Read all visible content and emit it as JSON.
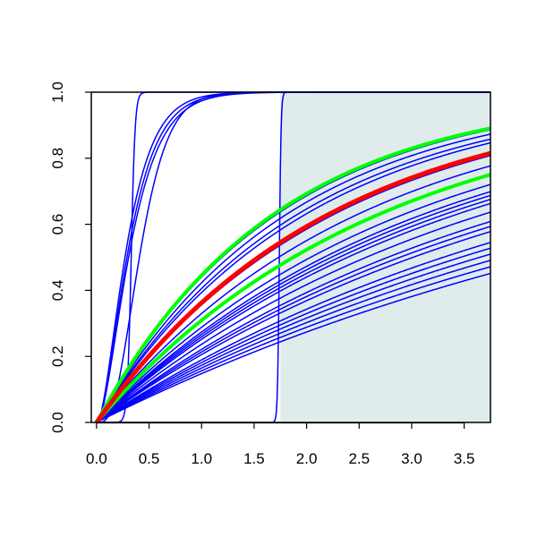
{
  "chart_data": {
    "type": "line",
    "title": "",
    "xlabel": "",
    "ylabel": "",
    "xlim": [
      -0.05,
      3.75
    ],
    "ylim": [
      0,
      1.0
    ],
    "x_ticks": [
      "0.0",
      "0.5",
      "1.0",
      "1.5",
      "2.0",
      "2.5",
      "3.0",
      "3.5"
    ],
    "y_ticks": [
      "0.0",
      "0.2",
      "0.4",
      "0.6",
      "0.8",
      "1.0"
    ],
    "shaded_region": {
      "x_from": 1.75,
      "x_to": 3.75,
      "color": "#e0ecec"
    },
    "colors": {
      "blue": "#0000ff",
      "red": "#ff0000",
      "green": "#00ff00",
      "frame": "#000000"
    },
    "grid": false,
    "legend": "none",
    "series": [
      {
        "color": "blue",
        "kind": "exp",
        "k": 0.58,
        "width": 1.5
      },
      {
        "color": "blue",
        "kind": "exp",
        "k": 0.55,
        "width": 1.5
      },
      {
        "color": "blue",
        "kind": "exp",
        "k": 0.52,
        "width": 1.5
      },
      {
        "color": "blue",
        "kind": "exp",
        "k": 0.5,
        "width": 1.5
      },
      {
        "color": "blue",
        "kind": "exp",
        "k": 0.44,
        "width": 1.5
      },
      {
        "color": "blue",
        "kind": "exp",
        "k": 0.4,
        "width": 1.5
      },
      {
        "color": "blue",
        "kind": "exp",
        "k": 0.37,
        "width": 1.5
      },
      {
        "color": "blue",
        "kind": "exp",
        "k": 0.34,
        "width": 1.5
      },
      {
        "color": "blue",
        "kind": "exp",
        "k": 0.32,
        "width": 1.5
      },
      {
        "color": "blue",
        "kind": "exp",
        "k": 0.31,
        "width": 1.5
      },
      {
        "color": "blue",
        "kind": "exp",
        "k": 0.3,
        "width": 1.5
      },
      {
        "color": "blue",
        "kind": "exp",
        "k": 0.29,
        "width": 1.5
      },
      {
        "color": "blue",
        "kind": "exp",
        "k": 0.27,
        "width": 1.5
      },
      {
        "color": "blue",
        "kind": "exp",
        "k": 0.25,
        "width": 1.5
      },
      {
        "color": "blue",
        "kind": "exp",
        "k": 0.24,
        "width": 1.5
      },
      {
        "color": "blue",
        "kind": "exp",
        "k": 0.23,
        "width": 1.5
      },
      {
        "color": "blue",
        "kind": "exp",
        "k": 0.21,
        "width": 1.5
      },
      {
        "color": "blue",
        "kind": "exp",
        "k": 0.2,
        "width": 1.5
      },
      {
        "color": "blue",
        "kind": "exp",
        "k": 0.19,
        "width": 1.5
      },
      {
        "color": "blue",
        "kind": "exp",
        "k": 0.18,
        "width": 1.5
      },
      {
        "color": "blue",
        "kind": "exp",
        "k": 0.17,
        "width": 1.5
      },
      {
        "color": "blue",
        "kind": "exp",
        "k": 0.16,
        "width": 1.5
      },
      {
        "color": "blue",
        "kind": "gamma2",
        "rate": 6.2,
        "width": 1.5
      },
      {
        "color": "blue",
        "kind": "gamma2",
        "rate": 5.8,
        "width": 1.5
      },
      {
        "color": "blue",
        "kind": "gamma2",
        "rate": 5.5,
        "width": 1.5
      },
      {
        "color": "blue",
        "kind": "gamma4",
        "rate": 9.0,
        "width": 1.5
      },
      {
        "color": "blue",
        "kind": "step",
        "at": 0.33,
        "sharp": 55,
        "width": 1.5
      },
      {
        "color": "blue",
        "kind": "step",
        "at": 1.74,
        "sharp": 120,
        "width": 1.5
      },
      {
        "color": "green",
        "kind": "exp",
        "k": 0.59,
        "width": 4
      },
      {
        "color": "green",
        "kind": "exp",
        "k": 0.37,
        "width": 4
      },
      {
        "color": "red",
        "kind": "exp",
        "k": 0.45,
        "width": 5
      }
    ]
  }
}
